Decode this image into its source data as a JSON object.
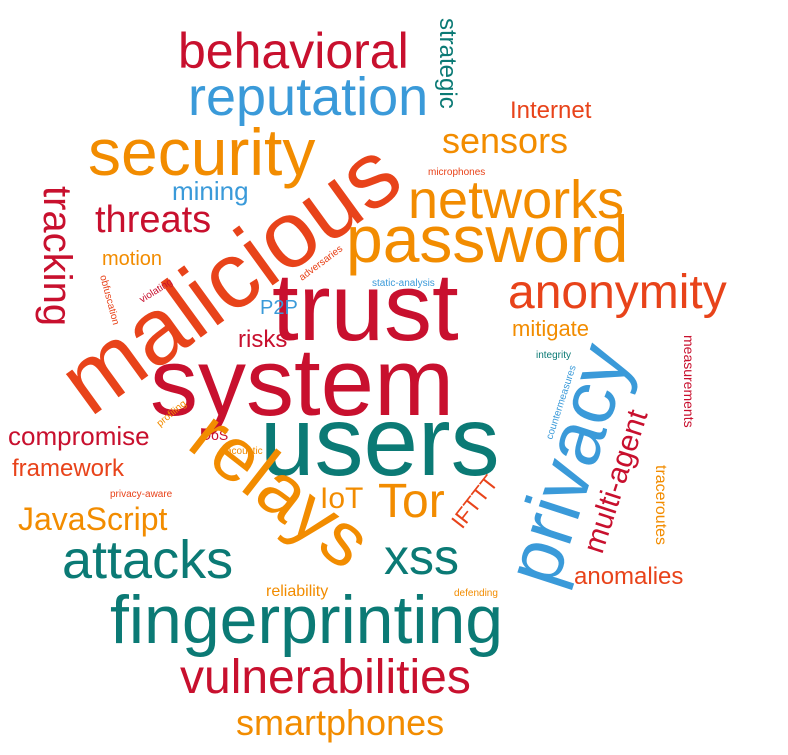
{
  "palette": {
    "red": "#c8102e",
    "orange": "#f28c00",
    "teal": "#0b7a75",
    "blue": "#3a9ad9",
    "red_orange": "#e8431a"
  },
  "words": [
    {
      "text": "behavioral",
      "color": "red"
    },
    {
      "text": "strategic",
      "color": "teal"
    },
    {
      "text": "reputation",
      "color": "blue"
    },
    {
      "text": "Internet",
      "color": "red_orange"
    },
    {
      "text": "security",
      "color": "orange"
    },
    {
      "text": "sensors",
      "color": "orange"
    },
    {
      "text": "microphones",
      "color": "red_orange"
    },
    {
      "text": "mining",
      "color": "blue"
    },
    {
      "text": "networks",
      "color": "orange"
    },
    {
      "text": "tracking",
      "color": "red"
    },
    {
      "text": "threats",
      "color": "red"
    },
    {
      "text": "malicious",
      "color": "red_orange"
    },
    {
      "text": "password",
      "color": "orange"
    },
    {
      "text": "motion",
      "color": "orange"
    },
    {
      "text": "adversaries",
      "color": "red_orange"
    },
    {
      "text": "trust",
      "color": "red"
    },
    {
      "text": "static-analysis",
      "color": "blue"
    },
    {
      "text": "anonymity",
      "color": "red_orange"
    },
    {
      "text": "obfuscation",
      "color": "red_orange"
    },
    {
      "text": "violating",
      "color": "red"
    },
    {
      "text": "P2P",
      "color": "blue"
    },
    {
      "text": "risks",
      "color": "red"
    },
    {
      "text": "mitigate",
      "color": "orange"
    },
    {
      "text": "integrity",
      "color": "teal"
    },
    {
      "text": "privacy",
      "color": "blue"
    },
    {
      "text": "system",
      "color": "red"
    },
    {
      "text": "measurements",
      "color": "red"
    },
    {
      "text": "profiling",
      "color": "orange"
    },
    {
      "text": "countermeasures",
      "color": "blue"
    },
    {
      "text": "compromise",
      "color": "red"
    },
    {
      "text": "DoS",
      "color": "red"
    },
    {
      "text": "users",
      "color": "teal"
    },
    {
      "text": "acoustic",
      "color": "orange"
    },
    {
      "text": "multi-agent",
      "color": "red"
    },
    {
      "text": "framework",
      "color": "red_orange"
    },
    {
      "text": "relays",
      "color": "orange"
    },
    {
      "text": "privacy-aware",
      "color": "red_orange"
    },
    {
      "text": "IoT",
      "color": "orange"
    },
    {
      "text": "Tor",
      "color": "orange"
    },
    {
      "text": "IFTTT",
      "color": "red_orange"
    },
    {
      "text": "traceroutes",
      "color": "orange"
    },
    {
      "text": "JavaScript",
      "color": "orange"
    },
    {
      "text": "attacks",
      "color": "teal"
    },
    {
      "text": "xss",
      "color": "teal"
    },
    {
      "text": "anomalies",
      "color": "red_orange"
    },
    {
      "text": "reliability",
      "color": "orange"
    },
    {
      "text": "defending",
      "color": "orange"
    },
    {
      "text": "fingerprinting",
      "color": "teal"
    },
    {
      "text": "vulnerabilities",
      "color": "red"
    },
    {
      "text": "smartphones",
      "color": "orange"
    }
  ]
}
